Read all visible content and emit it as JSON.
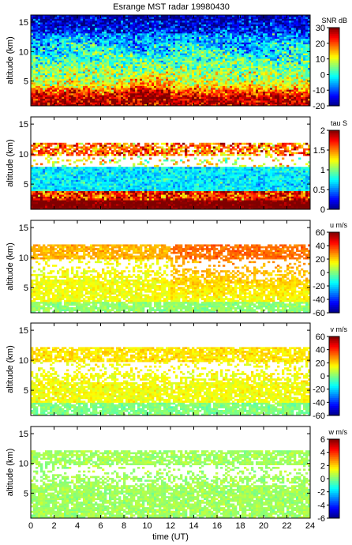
{
  "title": "Esrange MST radar 19980430",
  "chart_data": [
    {
      "type": "heatmap",
      "quantity": "SNR",
      "colorbar_label": "SNR dB",
      "colorbar_ticks": [
        -20,
        -10,
        0,
        10,
        20,
        30
      ],
      "clim": [
        -20,
        30
      ],
      "ylabel": "altitude (km)",
      "yticks": [
        5,
        10,
        15
      ],
      "ylim": [
        0.8,
        16.2
      ],
      "xlim": [
        0,
        24
      ],
      "grid": false
    },
    {
      "type": "heatmap",
      "quantity": "tau",
      "colorbar_label": "tau S",
      "colorbar_ticks": [
        0,
        0.5,
        1,
        1.5,
        2
      ],
      "clim": [
        0,
        2
      ],
      "ylabel": "altitude (km)",
      "yticks": [
        5,
        10,
        15
      ],
      "ylim": [
        0.8,
        16.2
      ],
      "xlim": [
        0,
        24
      ],
      "grid": false
    },
    {
      "type": "heatmap",
      "quantity": "u",
      "colorbar_label": "u m/s",
      "colorbar_ticks": [
        -60,
        -40,
        -20,
        0,
        20,
        40,
        60
      ],
      "clim": [
        -60,
        60
      ],
      "ylabel": "altitude (km)",
      "yticks": [
        5,
        10,
        15
      ],
      "ylim": [
        0.8,
        16.2
      ],
      "xlim": [
        0,
        24
      ],
      "grid": false
    },
    {
      "type": "heatmap",
      "quantity": "v",
      "colorbar_label": "v m/s",
      "colorbar_ticks": [
        -60,
        -40,
        -20,
        0,
        20,
        40,
        60
      ],
      "clim": [
        -60,
        60
      ],
      "ylabel": "altitude (km)",
      "yticks": [
        5,
        10,
        15
      ],
      "ylim": [
        0.8,
        16.2
      ],
      "xlim": [
        0,
        24
      ],
      "grid": false
    },
    {
      "type": "heatmap",
      "quantity": "w",
      "colorbar_label": "w m/s",
      "colorbar_ticks": [
        -6,
        -4,
        -2,
        0,
        2,
        4,
        6
      ],
      "clim": [
        -6,
        6
      ],
      "ylabel": "altitude (km)",
      "yticks": [
        5,
        10,
        15
      ],
      "ylim": [
        0.8,
        16.2
      ],
      "xlim": [
        0,
        24
      ],
      "xlabel": "time (UT)",
      "xticks": [
        0,
        2,
        4,
        6,
        8,
        10,
        12,
        14,
        16,
        18,
        20,
        22,
        24
      ],
      "grid": false
    }
  ]
}
